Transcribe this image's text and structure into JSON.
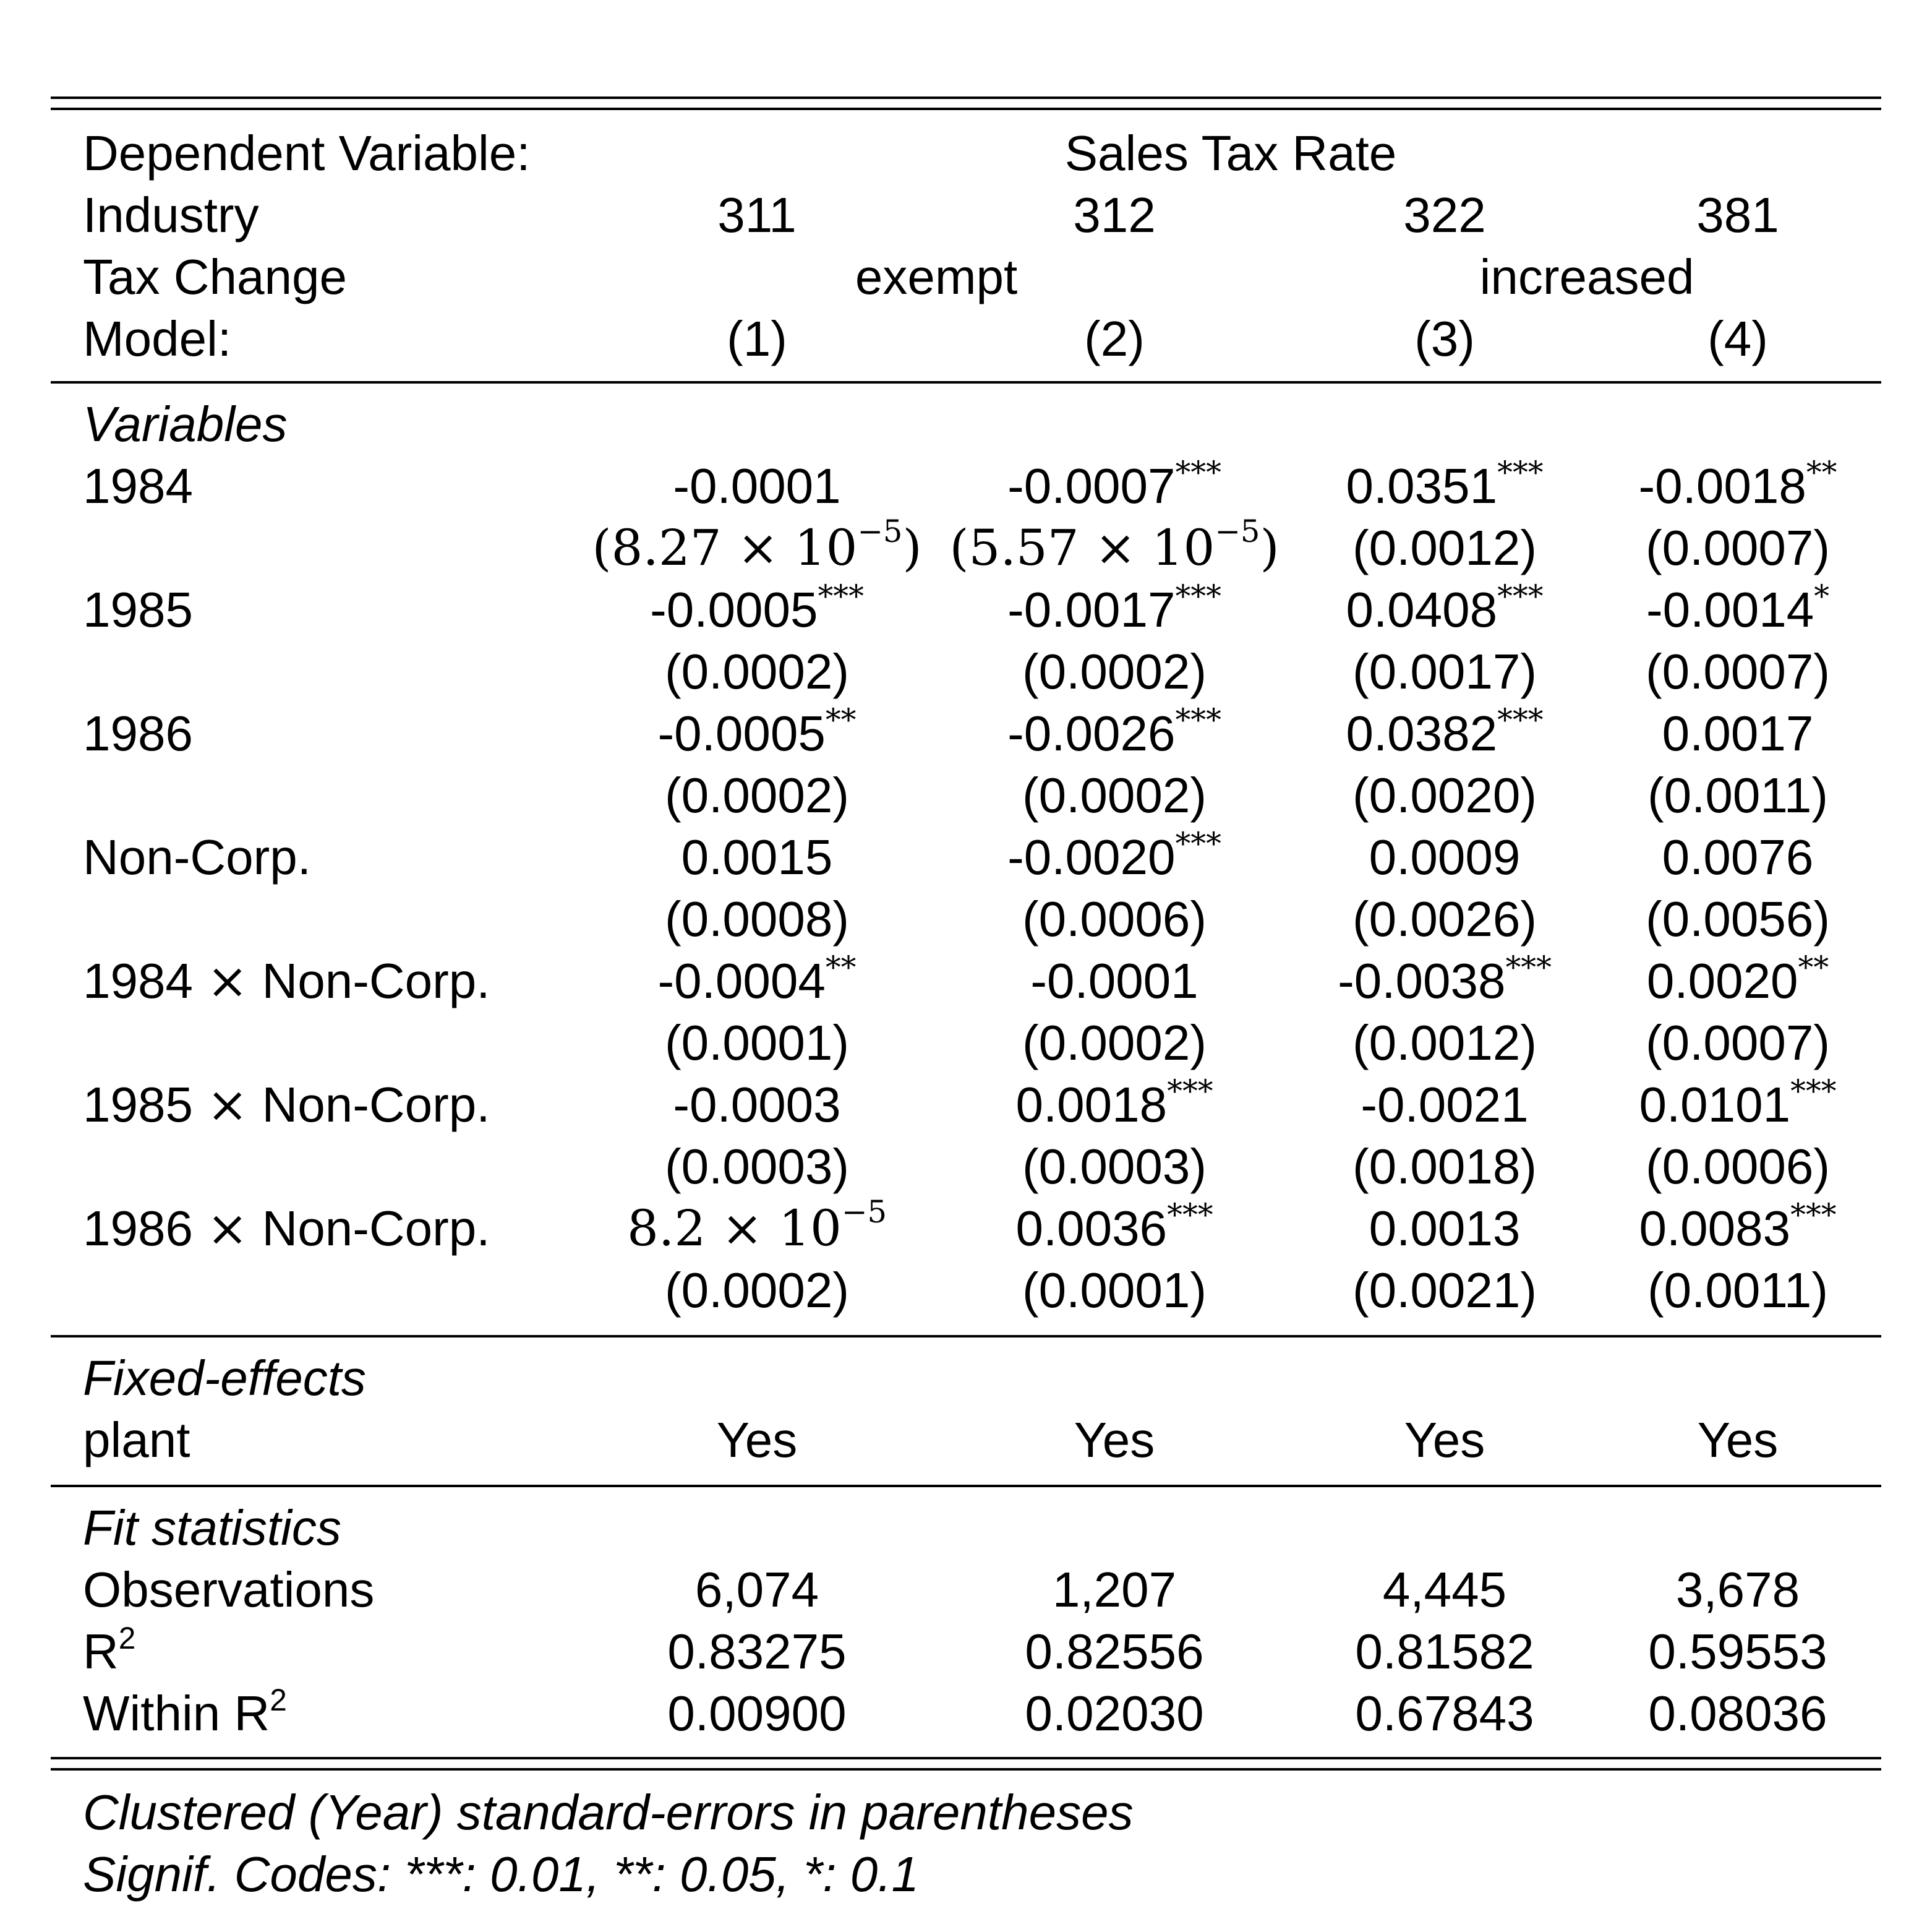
{
  "header": {
    "dep_var_label": "Dependent Variable:",
    "dep_var_value": "Sales Tax Rate",
    "industry_label": "Industry",
    "industries": [
      "311",
      "312",
      "322",
      "381"
    ],
    "tax_change_label": "Tax Change",
    "tax_change_groups": [
      "exempt",
      "increased"
    ],
    "model_label": "Model:",
    "models": [
      "(1)",
      "(2)",
      "(3)",
      "(4)"
    ]
  },
  "sections": {
    "variables": "Variables",
    "fixed_effects": "Fixed-effects",
    "fit_statistics": "Fit statistics"
  },
  "times_symbol": "×",
  "variables": [
    {
      "label": "1984",
      "interaction": false,
      "coefs": [
        {
          "value": "-0.0001",
          "stars": ""
        },
        {
          "value": "-0.0007",
          "stars": "***"
        },
        {
          "value": "0.0351",
          "stars": "***"
        },
        {
          "value": "-0.0018",
          "stars": "**"
        }
      ],
      "ses": [
        {
          "mantissa": "8.27",
          "base": "10",
          "exp": "−5"
        },
        {
          "mantissa": "5.57",
          "base": "10",
          "exp": "−5"
        },
        "(0.0012)",
        "(0.0007)"
      ]
    },
    {
      "label": "1985",
      "interaction": false,
      "coefs": [
        {
          "value": "-0.0005",
          "stars": "***"
        },
        {
          "value": "-0.0017",
          "stars": "***"
        },
        {
          "value": "0.0408",
          "stars": "***"
        },
        {
          "value": "-0.0014",
          "stars": "*"
        }
      ],
      "ses": [
        "(0.0002)",
        "(0.0002)",
        "(0.0017)",
        "(0.0007)"
      ]
    },
    {
      "label": "1986",
      "interaction": false,
      "coefs": [
        {
          "value": "-0.0005",
          "stars": "**"
        },
        {
          "value": "-0.0026",
          "stars": "***"
        },
        {
          "value": "0.0382",
          "stars": "***"
        },
        {
          "value": "0.0017",
          "stars": ""
        }
      ],
      "ses": [
        "(0.0002)",
        "(0.0002)",
        "(0.0020)",
        "(0.0011)"
      ]
    },
    {
      "label": "Non-Corp.",
      "interaction": false,
      "coefs": [
        {
          "value": "0.0015",
          "stars": ""
        },
        {
          "value": "-0.0020",
          "stars": "***"
        },
        {
          "value": "0.0009",
          "stars": ""
        },
        {
          "value": "0.0076",
          "stars": ""
        }
      ],
      "ses": [
        "(0.0008)",
        "(0.0006)",
        "(0.0026)",
        "(0.0056)"
      ]
    },
    {
      "label": "1984",
      "label_suffix": "Non-Corp.",
      "interaction": true,
      "coefs": [
        {
          "value": "-0.0004",
          "stars": "**"
        },
        {
          "value": "-0.0001",
          "stars": ""
        },
        {
          "value": "-0.0038",
          "stars": "***"
        },
        {
          "value": "0.0020",
          "stars": "**"
        }
      ],
      "ses": [
        "(0.0001)",
        "(0.0002)",
        "(0.0012)",
        "(0.0007)"
      ]
    },
    {
      "label": "1985",
      "label_suffix": "Non-Corp.",
      "interaction": true,
      "coefs": [
        {
          "value": "-0.0003",
          "stars": ""
        },
        {
          "value": "0.0018",
          "stars": "***"
        },
        {
          "value": "-0.0021",
          "stars": ""
        },
        {
          "value": "0.0101",
          "stars": "***"
        }
      ],
      "ses": [
        "(0.0003)",
        "(0.0003)",
        "(0.0018)",
        "(0.0006)"
      ]
    },
    {
      "label": "1986",
      "label_suffix": "Non-Corp.",
      "interaction": true,
      "coefs": [
        {
          "mantissa": "8.2",
          "base": "10",
          "exp": "−5",
          "stars": ""
        },
        {
          "value": "0.0036",
          "stars": "***"
        },
        {
          "value": "0.0013",
          "stars": ""
        },
        {
          "value": "0.0083",
          "stars": "***"
        }
      ],
      "ses": [
        "(0.0002)",
        "(0.0001)",
        "(0.0021)",
        "(0.0011)"
      ]
    }
  ],
  "fixed_effects": [
    {
      "label": "plant",
      "values": [
        "Yes",
        "Yes",
        "Yes",
        "Yes"
      ]
    }
  ],
  "fit_statistics": [
    {
      "label": "Observations",
      "values": [
        "6,074",
        "1,207",
        "4,445",
        "3,678"
      ]
    },
    {
      "label": "R",
      "sup": "2",
      "values": [
        "0.83275",
        "0.82556",
        "0.81582",
        "0.59553"
      ]
    },
    {
      "label": "Within R",
      "sup": "2",
      "values": [
        "0.00900",
        "0.02030",
        "0.67843",
        "0.08036"
      ]
    }
  ],
  "footnotes": [
    "Clustered (Year) standard-errors in parentheses",
    "Signif. Codes: ***: 0.01, **: 0.05, *: 0.1"
  ]
}
